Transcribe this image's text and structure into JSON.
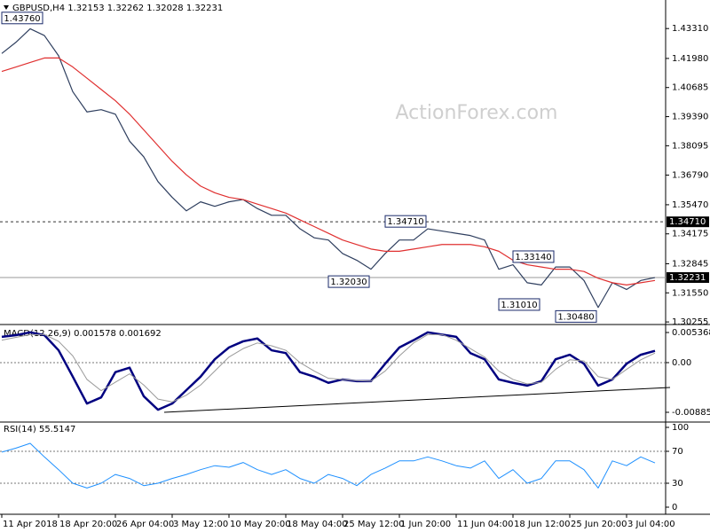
{
  "chart_data": [
    {
      "type": "line",
      "title": "GBPUSD,H4 1.32153 1.32262 1.32028 1.32231",
      "watermark": "ActionForex.com",
      "categories": [
        "11 Apr 2018",
        null,
        null,
        null,
        "18 Apr 20:00",
        null,
        null,
        null,
        "26 Apr 04:00",
        null,
        null,
        null,
        "3 May 12:00",
        null,
        null,
        null,
        "10 May 20:00",
        null,
        null,
        null,
        "18 May 04:00",
        null,
        null,
        null,
        "25 May 12:00",
        null,
        null,
        null,
        "1 Jun 20:00",
        null,
        null,
        null,
        "11 Jun 04:00",
        null,
        null,
        null,
        "18 Jun 12:00",
        null,
        null,
        null,
        "25 Jun 20:00",
        null,
        null,
        null,
        "3 Jul 04:00",
        null,
        null
      ],
      "series": [
        {
          "color": "#2f3f5f",
          "values": [
            1.422,
            1.427,
            1.433,
            1.43,
            1.421,
            1.405,
            1.396,
            1.397,
            1.395,
            1.383,
            1.376,
            1.365,
            1.358,
            1.352,
            1.356,
            1.354,
            1.356,
            1.357,
            1.353,
            1.35,
            1.35,
            1.344,
            1.34,
            1.339,
            1.333,
            1.33,
            1.326,
            1.333,
            1.339,
            1.339,
            1.344,
            1.343,
            1.342,
            1.341,
            1.339,
            1.326,
            1.328,
            1.32,
            1.319,
            1.327,
            1.327,
            1.321,
            1.309,
            1.32,
            1.317,
            1.321,
            1.3223
          ]
        },
        {
          "color": "#e03030",
          "values": [
            1.414,
            1.416,
            1.418,
            1.42,
            1.42,
            1.416,
            1.411,
            1.406,
            1.401,
            1.395,
            1.388,
            1.381,
            1.374,
            1.368,
            1.363,
            1.36,
            1.358,
            1.357,
            1.355,
            1.353,
            1.351,
            1.348,
            1.345,
            1.342,
            1.339,
            1.337,
            1.335,
            1.334,
            1.334,
            1.335,
            1.336,
            1.337,
            1.337,
            1.337,
            1.336,
            1.334,
            1.33,
            1.328,
            1.327,
            1.326,
            1.326,
            1.325,
            1.322,
            1.32,
            1.319,
            1.32,
            1.321
          ]
        }
      ],
      "ylim": [
        1.3018,
        1.4458
      ],
      "yticks": [
        {
          "value": 1.4331,
          "label": "1.43310"
        },
        {
          "value": 1.4198,
          "label": "1.41980"
        },
        1.40685,
        {
          "value": 1.3939,
          "label": "1.39390"
        },
        1.38095,
        {
          "value": 1.3679,
          "label": "1.36790"
        },
        {
          "value": 1.3547,
          "label": "1.35470"
        },
        1.34175,
        1.32845,
        {
          "value": 1.3155,
          "label": "1.31550"
        },
        1.30255
      ],
      "grid": false,
      "hlines": [
        {
          "value": 1.3471,
          "label": "1.34710",
          "dashed": true
        },
        {
          "value": 1.32231,
          "dashed": false
        }
      ],
      "annotations": [
        {
          "text": "1.43760",
          "value": 1.4376,
          "index": 3
        },
        {
          "text": "1.34710",
          "value": 1.3471,
          "index": 30
        },
        {
          "text": "1.33140",
          "value": 1.3314,
          "index": 39
        },
        {
          "text": "1.32030",
          "value": 1.3203,
          "index": 26
        },
        {
          "text": "1.31010",
          "value": 1.3101,
          "index": 38
        },
        {
          "text": "1.30480",
          "value": 1.3048,
          "index": 42
        }
      ]
    },
    {
      "type": "line",
      "title": "MACD(12,26,9) 0.001578 0.001692",
      "series": [
        {
          "color": "#000080",
          "width": 2.5,
          "values": [
            0.0046,
            0.0049,
            0.0054,
            0.0049,
            0.0022,
            -0.0025,
            -0.0073,
            -0.0062,
            -0.0017,
            -0.0009,
            -0.006,
            -0.0084,
            -0.0073,
            -0.0049,
            -0.0025,
            0.0006,
            0.0027,
            0.0038,
            0.0043,
            0.0022,
            0.0017,
            -0.0017,
            -0.0025,
            -0.0036,
            -0.003,
            -0.0033,
            -0.0033,
            -0.0002,
            0.0027,
            0.004,
            0.0054,
            0.005,
            0.0046,
            0.0017,
            0.0006,
            -0.003,
            -0.0036,
            -0.0041,
            -0.0033,
            0.0006,
            0.0014,
            -0.0002,
            -0.0041,
            -0.003,
            -0.0002,
            0.0014,
            0.0021
          ]
        },
        {
          "color": "#9a9a9a",
          "width": 1,
          "values": [
            0.004,
            0.0045,
            0.005,
            0.005,
            0.0038,
            0.0012,
            -0.003,
            -0.005,
            -0.0035,
            -0.002,
            -0.004,
            -0.0065,
            -0.007,
            -0.0058,
            -0.004,
            -0.0015,
            0.001,
            0.0025,
            0.0035,
            0.003,
            0.0022,
            0.0,
            -0.0015,
            -0.0028,
            -0.003,
            -0.0032,
            -0.0033,
            -0.0015,
            0.0012,
            0.0035,
            0.005,
            0.005,
            0.004,
            0.0025,
            0.001,
            -0.0015,
            -0.003,
            -0.0038,
            -0.0035,
            -0.0012,
            0.0005,
            0.0003,
            -0.0025,
            -0.003,
            -0.0012,
            0.0005,
            0.0017
          ]
        }
      ],
      "ylim": [
        -0.008855,
        0.005368
      ],
      "yticks": [
        0.005368,
        {
          "value": 0,
          "label": "0.00"
        },
        -0.008855
      ],
      "grid": true
    },
    {
      "type": "line",
      "title": "RSI(14) 55.5147",
      "series": [
        {
          "color": "#1e90ff",
          "width": 1,
          "values": [
            69,
            74,
            80,
            63,
            47,
            30,
            24,
            30,
            41,
            36,
            27,
            30,
            36,
            41,
            47,
            52,
            50,
            56,
            47,
            41,
            47,
            36,
            30,
            41,
            36,
            27,
            41,
            49,
            58,
            58,
            63,
            58,
            52,
            49,
            58,
            36,
            47,
            30,
            36,
            58,
            58,
            47,
            24,
            58,
            52,
            63,
            55.5
          ]
        }
      ],
      "ylim": [
        0,
        100
      ],
      "yticks": [
        100,
        70,
        30,
        0
      ],
      "grid": true
    }
  ]
}
